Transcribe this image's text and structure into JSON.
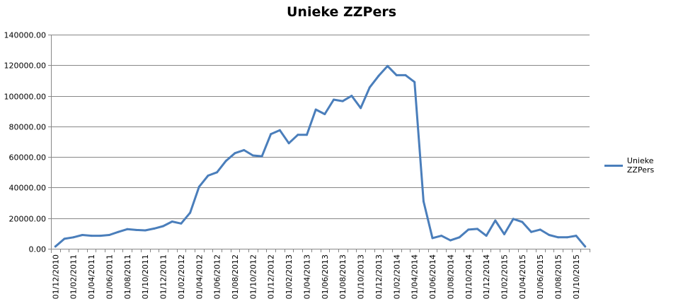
{
  "chart_data": {
    "type": "line",
    "title": "Unieke ZZPers",
    "xlabel": "",
    "ylabel": "",
    "ylim": [
      0,
      140000
    ],
    "yticks": [
      "0.00",
      "20000.00",
      "40000.00",
      "60000.00",
      "80000.00",
      "100000.00",
      "120000.00",
      "140000.00"
    ],
    "y_tick_values": [
      0,
      20000,
      40000,
      60000,
      80000,
      100000,
      120000,
      140000
    ],
    "grid": true,
    "legend": "right",
    "color": "#4a7ebb",
    "x": [
      "01/12/2010",
      "01/01/2011",
      "01/02/2011",
      "01/03/2011",
      "01/04/2011",
      "01/05/2011",
      "01/06/2011",
      "01/07/2011",
      "01/08/2011",
      "01/09/2011",
      "01/10/2011",
      "01/11/2011",
      "01/12/2011",
      "01/01/2012",
      "01/02/2012",
      "01/03/2012",
      "01/04/2012",
      "01/05/2012",
      "01/06/2012",
      "01/07/2012",
      "01/08/2012",
      "01/09/2012",
      "01/10/2012",
      "01/11/2012",
      "01/12/2012",
      "01/01/2013",
      "01/02/2013",
      "01/03/2013",
      "01/04/2013",
      "01/05/2013",
      "01/06/2013",
      "01/07/2013",
      "01/08/2013",
      "01/09/2013",
      "01/10/2013",
      "01/11/2013",
      "01/12/2013",
      "01/01/2014",
      "01/02/2014",
      "01/03/2014",
      "01/04/2014",
      "01/05/2014",
      "01/06/2014",
      "01/07/2014",
      "01/08/2014",
      "01/09/2014",
      "01/10/2014",
      "01/11/2014",
      "01/12/2014",
      "01/01/2015",
      "01/02/2015",
      "01/03/2015",
      "01/04/2015",
      "01/05/2015",
      "01/06/2015",
      "01/07/2015",
      "01/08/2015",
      "01/09/2015",
      "01/10/2015",
      "01/11/2015"
    ],
    "x_tick_labels": [
      "01/12/2010",
      "01/02/2011",
      "01/04/2011",
      "01/06/2011",
      "01/08/2011",
      "01/10/2011",
      "01/12/2011",
      "01/02/2012",
      "01/04/2012",
      "01/06/2012",
      "01/08/2012",
      "01/10/2012",
      "01/12/2012",
      "01/02/2013",
      "01/04/2013",
      "01/06/2013",
      "01/08/2013",
      "01/10/2013",
      "01/12/2013",
      "01/02/2014",
      "01/04/2014",
      "01/06/2014",
      "01/08/2014",
      "01/10/2014",
      "01/12/2014",
      "01/02/2015",
      "01/04/2015",
      "01/06/2015",
      "01/08/2015",
      "01/10/2015"
    ],
    "series": [
      {
        "name": "Unieke ZZPers",
        "values": [
          1500,
          6500,
          7500,
          9000,
          8500,
          8500,
          9000,
          11000,
          12800,
          12300,
          12000,
          13200,
          14800,
          17800,
          16500,
          23500,
          40500,
          47800,
          50000,
          57500,
          62500,
          64500,
          61000,
          60500,
          75000,
          77500,
          69000,
          74500,
          74500,
          91000,
          88000,
          97500,
          96500,
          100000,
          92000,
          105500,
          113000,
          119500,
          113500,
          113500,
          109000,
          31000,
          7000,
          8500,
          5500,
          7500,
          12500,
          13000,
          8500,
          18500,
          9500,
          19500,
          17500,
          11000,
          12500,
          9000,
          7500,
          7500,
          8500,
          1500
        ]
      }
    ]
  }
}
